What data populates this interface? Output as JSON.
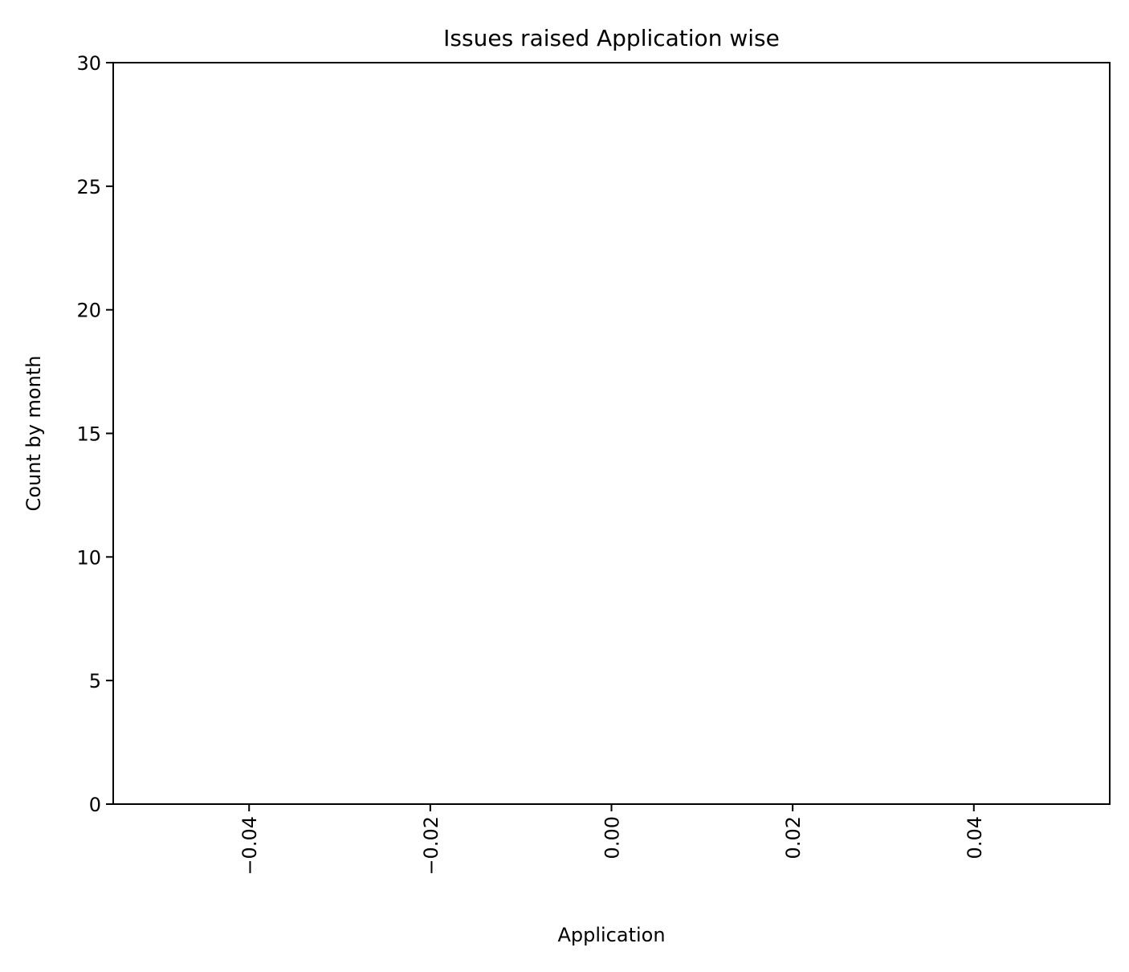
{
  "chart_data": {
    "type": "bar",
    "title": "Issues raised Application wise",
    "xlabel": "Application",
    "ylabel": "Count by month",
    "xlim": [
      -0.055,
      0.055
    ],
    "ylim": [
      0,
      30
    ],
    "x_ticks": [
      -0.04,
      -0.02,
      0.0,
      0.02,
      0.04
    ],
    "x_tick_labels": [
      "−0.04",
      "−0.02",
      "0.00",
      "0.02",
      "0.04"
    ],
    "y_ticks": [
      0,
      5,
      10,
      15,
      20,
      25,
      30
    ],
    "y_tick_labels": [
      "0",
      "5",
      "10",
      "15",
      "20",
      "25",
      "30"
    ],
    "categories": [],
    "values": [],
    "grid": false,
    "legend": "none",
    "colors": {
      "axes": "#000000",
      "background": "#ffffff",
      "text": "#000000"
    }
  }
}
